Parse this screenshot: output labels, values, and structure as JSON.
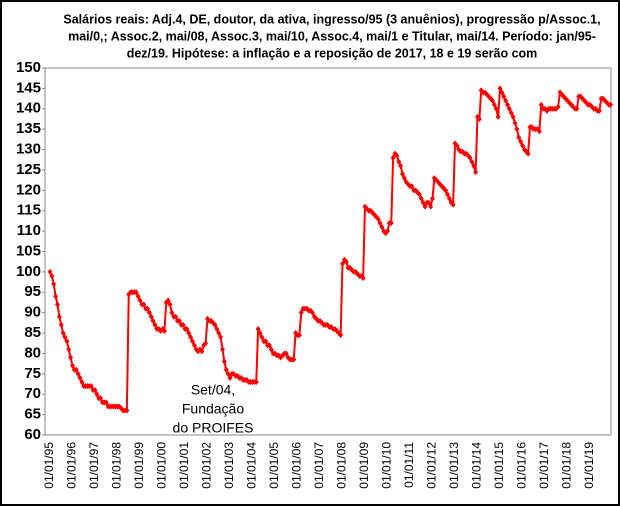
{
  "chart_data": {
    "type": "line",
    "title": [
      "Salários reais: Adj.4, DE, doutor, da ativa, ingresso/95 (3 anuênios), progressão p/Assoc.1,",
      "mai/0,; Assoc.2, mai/08, Assoc.3, mai/10, Assoc.4, mai/1 e Titular, mai/14. Período: jan/95-",
      "dez/19.  Hipótese: a inflação e a reposição de 2017, 18 e 19 serão com"
    ],
    "annotation": [
      "Set/04,",
      "Fundação",
      "do PROIFES"
    ],
    "categories": [
      "01/01/95",
      null,
      null,
      null,
      null,
      null,
      null,
      null,
      null,
      null,
      null,
      null,
      "01/01/96",
      null,
      null,
      null,
      null,
      null,
      null,
      null,
      null,
      null,
      null,
      null,
      "01/01/97",
      null,
      null,
      null,
      null,
      null,
      null,
      null,
      null,
      null,
      null,
      null,
      "01/01/98",
      null,
      null,
      null,
      null,
      null,
      null,
      null,
      null,
      null,
      null,
      null,
      "01/01/99",
      null,
      null,
      null,
      null,
      null,
      null,
      null,
      null,
      null,
      null,
      null,
      "01/01/00",
      null,
      null,
      null,
      null,
      null,
      null,
      null,
      null,
      null,
      null,
      null,
      "01/01/01",
      null,
      null,
      null,
      null,
      null,
      null,
      null,
      null,
      null,
      null,
      null,
      "01/01/02",
      null,
      null,
      null,
      null,
      null,
      null,
      null,
      null,
      null,
      null,
      null,
      "01/01/03",
      null,
      null,
      null,
      null,
      null,
      null,
      null,
      null,
      null,
      null,
      null,
      "01/01/04",
      null,
      null,
      null,
      null,
      null,
      null,
      null,
      null,
      null,
      null,
      null,
      "01/01/05",
      null,
      null,
      null,
      null,
      null,
      null,
      null,
      null,
      null,
      null,
      null,
      "01/01/06",
      null,
      null,
      null,
      null,
      null,
      null,
      null,
      null,
      null,
      null,
      null,
      "01/01/07",
      null,
      null,
      null,
      null,
      null,
      null,
      null,
      null,
      null,
      null,
      null,
      "01/01/08",
      null,
      null,
      null,
      null,
      null,
      null,
      null,
      null,
      null,
      null,
      null,
      "01/01/09",
      null,
      null,
      null,
      null,
      null,
      null,
      null,
      null,
      null,
      null,
      null,
      "01/01/10",
      null,
      null,
      null,
      null,
      null,
      null,
      null,
      null,
      null,
      null,
      null,
      "01/01/11",
      null,
      null,
      null,
      null,
      null,
      null,
      null,
      null,
      null,
      null,
      null,
      "01/01/12",
      null,
      null,
      null,
      null,
      null,
      null,
      null,
      null,
      null,
      null,
      null,
      "01/01/13",
      null,
      null,
      null,
      null,
      null,
      null,
      null,
      null,
      null,
      null,
      null,
      "01/01/14",
      null,
      null,
      null,
      null,
      null,
      null,
      null,
      null,
      null,
      null,
      null,
      "01/01/15",
      null,
      null,
      null,
      null,
      null,
      null,
      null,
      null,
      null,
      null,
      null,
      "01/01/16",
      null,
      null,
      null,
      null,
      null,
      null,
      null,
      null,
      null,
      null,
      null,
      "01/01/17",
      null,
      null,
      null,
      null,
      null,
      null,
      null,
      null,
      null,
      null,
      null,
      "01/01/18",
      null,
      null,
      null,
      null,
      null,
      null,
      null,
      null,
      null,
      null,
      null,
      "01/01/19",
      null,
      null,
      null,
      null,
      null,
      null,
      null,
      null,
      null,
      null,
      null
    ],
    "series": [
      {
        "color": "#ff0000",
        "values": [
          100,
          99,
          97,
          94,
          92,
          89,
          87,
          85,
          84,
          83,
          81,
          79,
          77,
          76,
          76,
          75,
          74,
          73,
          72,
          72,
          72,
          72,
          72,
          71,
          71,
          70,
          69,
          69,
          68,
          68,
          68,
          67,
          67,
          67,
          67,
          67,
          67,
          67,
          66.5,
          66,
          66,
          66,
          94.5,
          95,
          95,
          95,
          95,
          94,
          93,
          92,
          92,
          91,
          91,
          90,
          89,
          88,
          87,
          86,
          86,
          85.5,
          86,
          85.5,
          92.5,
          93,
          92,
          90,
          89,
          89,
          88,
          88,
          87,
          87,
          86,
          86,
          85,
          84,
          83,
          82,
          81,
          80.5,
          81,
          80.5,
          82,
          82.5,
          88.5,
          88,
          88,
          87.5,
          87,
          86,
          85,
          84,
          81,
          78,
          76,
          75,
          74,
          75,
          75,
          74.5,
          74.5,
          74,
          74,
          73.5,
          73.5,
          73.5,
          73,
          73,
          73,
          73,
          73,
          86,
          85,
          84,
          83,
          83,
          82,
          82,
          81,
          80,
          80,
          79.5,
          79.5,
          79,
          79.5,
          80,
          80,
          79,
          78.5,
          78.5,
          78.5,
          85,
          84.5,
          84.5,
          90,
          91,
          91,
          91,
          90.5,
          90.5,
          90,
          89,
          88.5,
          88,
          88,
          87.5,
          87,
          87,
          87,
          86.5,
          86.5,
          86,
          86,
          85.5,
          85,
          84.5,
          102,
          103,
          102.5,
          101,
          101,
          100.5,
          100,
          100,
          99.5,
          99,
          99,
          98.5,
          116,
          115.5,
          115,
          115,
          114.5,
          114,
          113.5,
          113,
          112,
          111,
          110,
          109.5,
          110,
          112,
          112,
          128,
          129,
          128.5,
          127,
          126,
          124,
          123,
          122,
          121.5,
          121,
          121,
          120,
          120,
          119.5,
          119,
          118,
          117,
          116,
          117,
          117,
          116,
          118,
          123,
          122.5,
          122,
          121.5,
          121,
          120.5,
          120,
          119,
          118,
          117,
          116.5,
          131.5,
          131,
          130,
          129.5,
          129.5,
          129,
          129,
          128.5,
          128,
          127,
          126,
          124.5,
          138,
          137.5,
          144.5,
          144,
          144,
          143.5,
          143,
          142.5,
          142,
          141,
          140,
          138,
          145,
          144,
          143,
          142,
          141,
          140,
          139,
          138,
          136.5,
          135,
          133,
          132,
          131,
          130,
          129.5,
          129,
          135.5,
          135.5,
          135,
          135,
          135,
          134.5,
          141,
          140,
          140,
          139.5,
          140,
          140,
          140,
          140,
          140,
          140.5,
          144,
          143.5,
          143,
          142.5,
          142,
          141.5,
          141,
          140.5,
          140,
          140,
          143,
          143,
          142.5,
          142,
          141.5,
          141,
          141,
          140.5,
          140,
          140,
          139.5,
          139.5,
          142.5,
          142.5,
          142,
          141.5,
          141,
          141
        ]
      }
    ],
    "ylim": [
      60,
      150
    ],
    "yticks": [
      60,
      65,
      70,
      75,
      80,
      85,
      90,
      95,
      100,
      105,
      110,
      115,
      120,
      125,
      130,
      135,
      140,
      145,
      150
    ],
    "grid": false
  }
}
